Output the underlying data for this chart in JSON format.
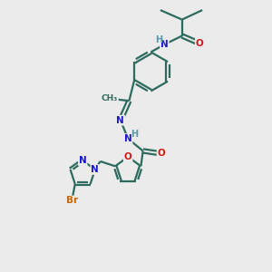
{
  "background_color": "#ebebeb",
  "bond_color": "#2d6b5e",
  "bond_width": 1.6,
  "atom_colors": {
    "N": "#1a1acc",
    "O": "#cc1a1a",
    "H": "#5599aa",
    "Br": "#cc6600",
    "C": "#2d6b5e"
  },
  "figsize": [
    3.0,
    3.0
  ],
  "dpi": 100
}
